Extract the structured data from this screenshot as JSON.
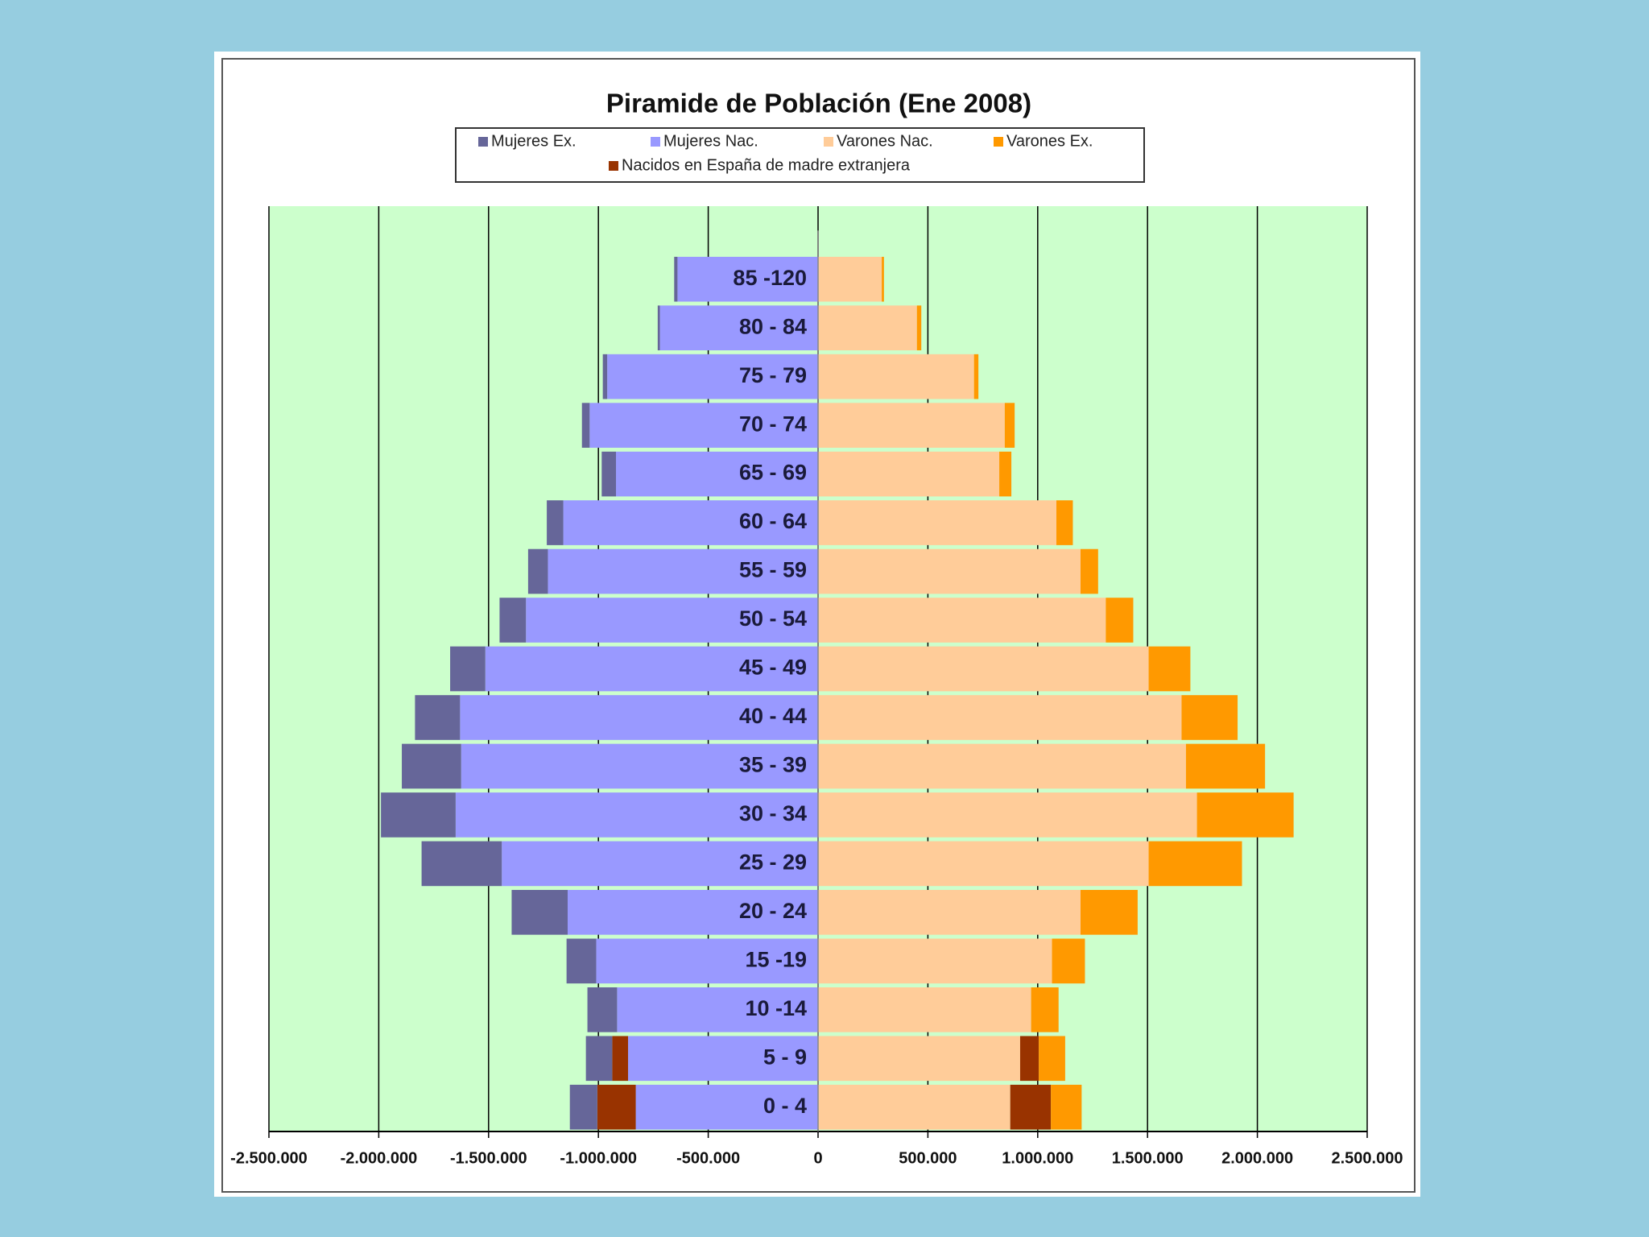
{
  "chart_data": {
    "type": "population-pyramid",
    "title": "Piramide de Población (Ene 2008)",
    "categories": [
      "0 - 4",
      "5 - 9",
      "10 -14",
      "15 -19",
      "20 - 24",
      "25 - 29",
      "30 - 34",
      "35 - 39",
      "40 - 44",
      "45 - 49",
      "50 - 54",
      "55 - 59",
      "60 - 64",
      "65 - 69",
      "70 - 74",
      "75 - 79",
      "80 - 84",
      "85 -120"
    ],
    "series": [
      {
        "name": "Mujeres Ex.",
        "color": "#666699",
        "values": [
          -125000,
          -120000,
          -135000,
          -135000,
          -255000,
          -365000,
          -340000,
          -270000,
          -205000,
          -160000,
          -120000,
          -90000,
          -75000,
          -65000,
          -35000,
          -20000,
          -10000,
          -15000
        ]
      },
      {
        "name": "Mujeres Nac.",
        "color": "#9999ff",
        "values": [
          -830000,
          -865000,
          -915000,
          -1010000,
          -1140000,
          -1440000,
          -1650000,
          -1625000,
          -1630000,
          -1515000,
          -1330000,
          -1230000,
          -1160000,
          -920000,
          -1040000,
          -960000,
          -720000,
          -640000
        ]
      },
      {
        "name": "Varones Nac.",
        "color": "#ffcc99",
        "values": [
          875000,
          920000,
          970000,
          1065000,
          1195000,
          1505000,
          1725000,
          1675000,
          1655000,
          1505000,
          1310000,
          1195000,
          1085000,
          825000,
          850000,
          710000,
          450000,
          290000
        ]
      },
      {
        "name": "Varones Ex.",
        "color": "#ff9900",
        "values": [
          140000,
          120000,
          125000,
          150000,
          260000,
          425000,
          440000,
          360000,
          255000,
          190000,
          125000,
          80000,
          75000,
          55000,
          45000,
          20000,
          20000,
          10000
        ]
      },
      {
        "name": "Nacidos en España de madre extranjera",
        "color": "#993300",
        "values": [
          185000,
          85000,
          null,
          null,
          null,
          null,
          null,
          null,
          null,
          null,
          null,
          null,
          null,
          null,
          null,
          null,
          null,
          null
        ],
        "values_left": [
          -175000,
          -72000,
          null,
          null,
          null,
          null,
          null,
          null,
          null,
          null,
          null,
          null,
          null,
          null,
          null,
          null,
          null,
          null
        ]
      }
    ],
    "xlim": [
      -2500000,
      2500000
    ],
    "xticks": [
      {
        "value": -2500000,
        "label": "-2.500.000"
      },
      {
        "value": -2000000,
        "label": "-2.000.000"
      },
      {
        "value": -1500000,
        "label": "-1.500.000"
      },
      {
        "value": -1000000,
        "label": "-1.000.000"
      },
      {
        "value": -500000,
        "label": "-500.000"
      },
      0,
      {
        "value": 500000,
        "label": "500.000"
      },
      {
        "value": 1000000,
        "label": "1.000.000"
      },
      {
        "value": 1500000,
        "label": "1.500.000"
      },
      {
        "value": 2000000,
        "label": "2.000.000"
      },
      {
        "value": 2500000,
        "label": "2.500.000"
      }
    ],
    "grid": true
  }
}
